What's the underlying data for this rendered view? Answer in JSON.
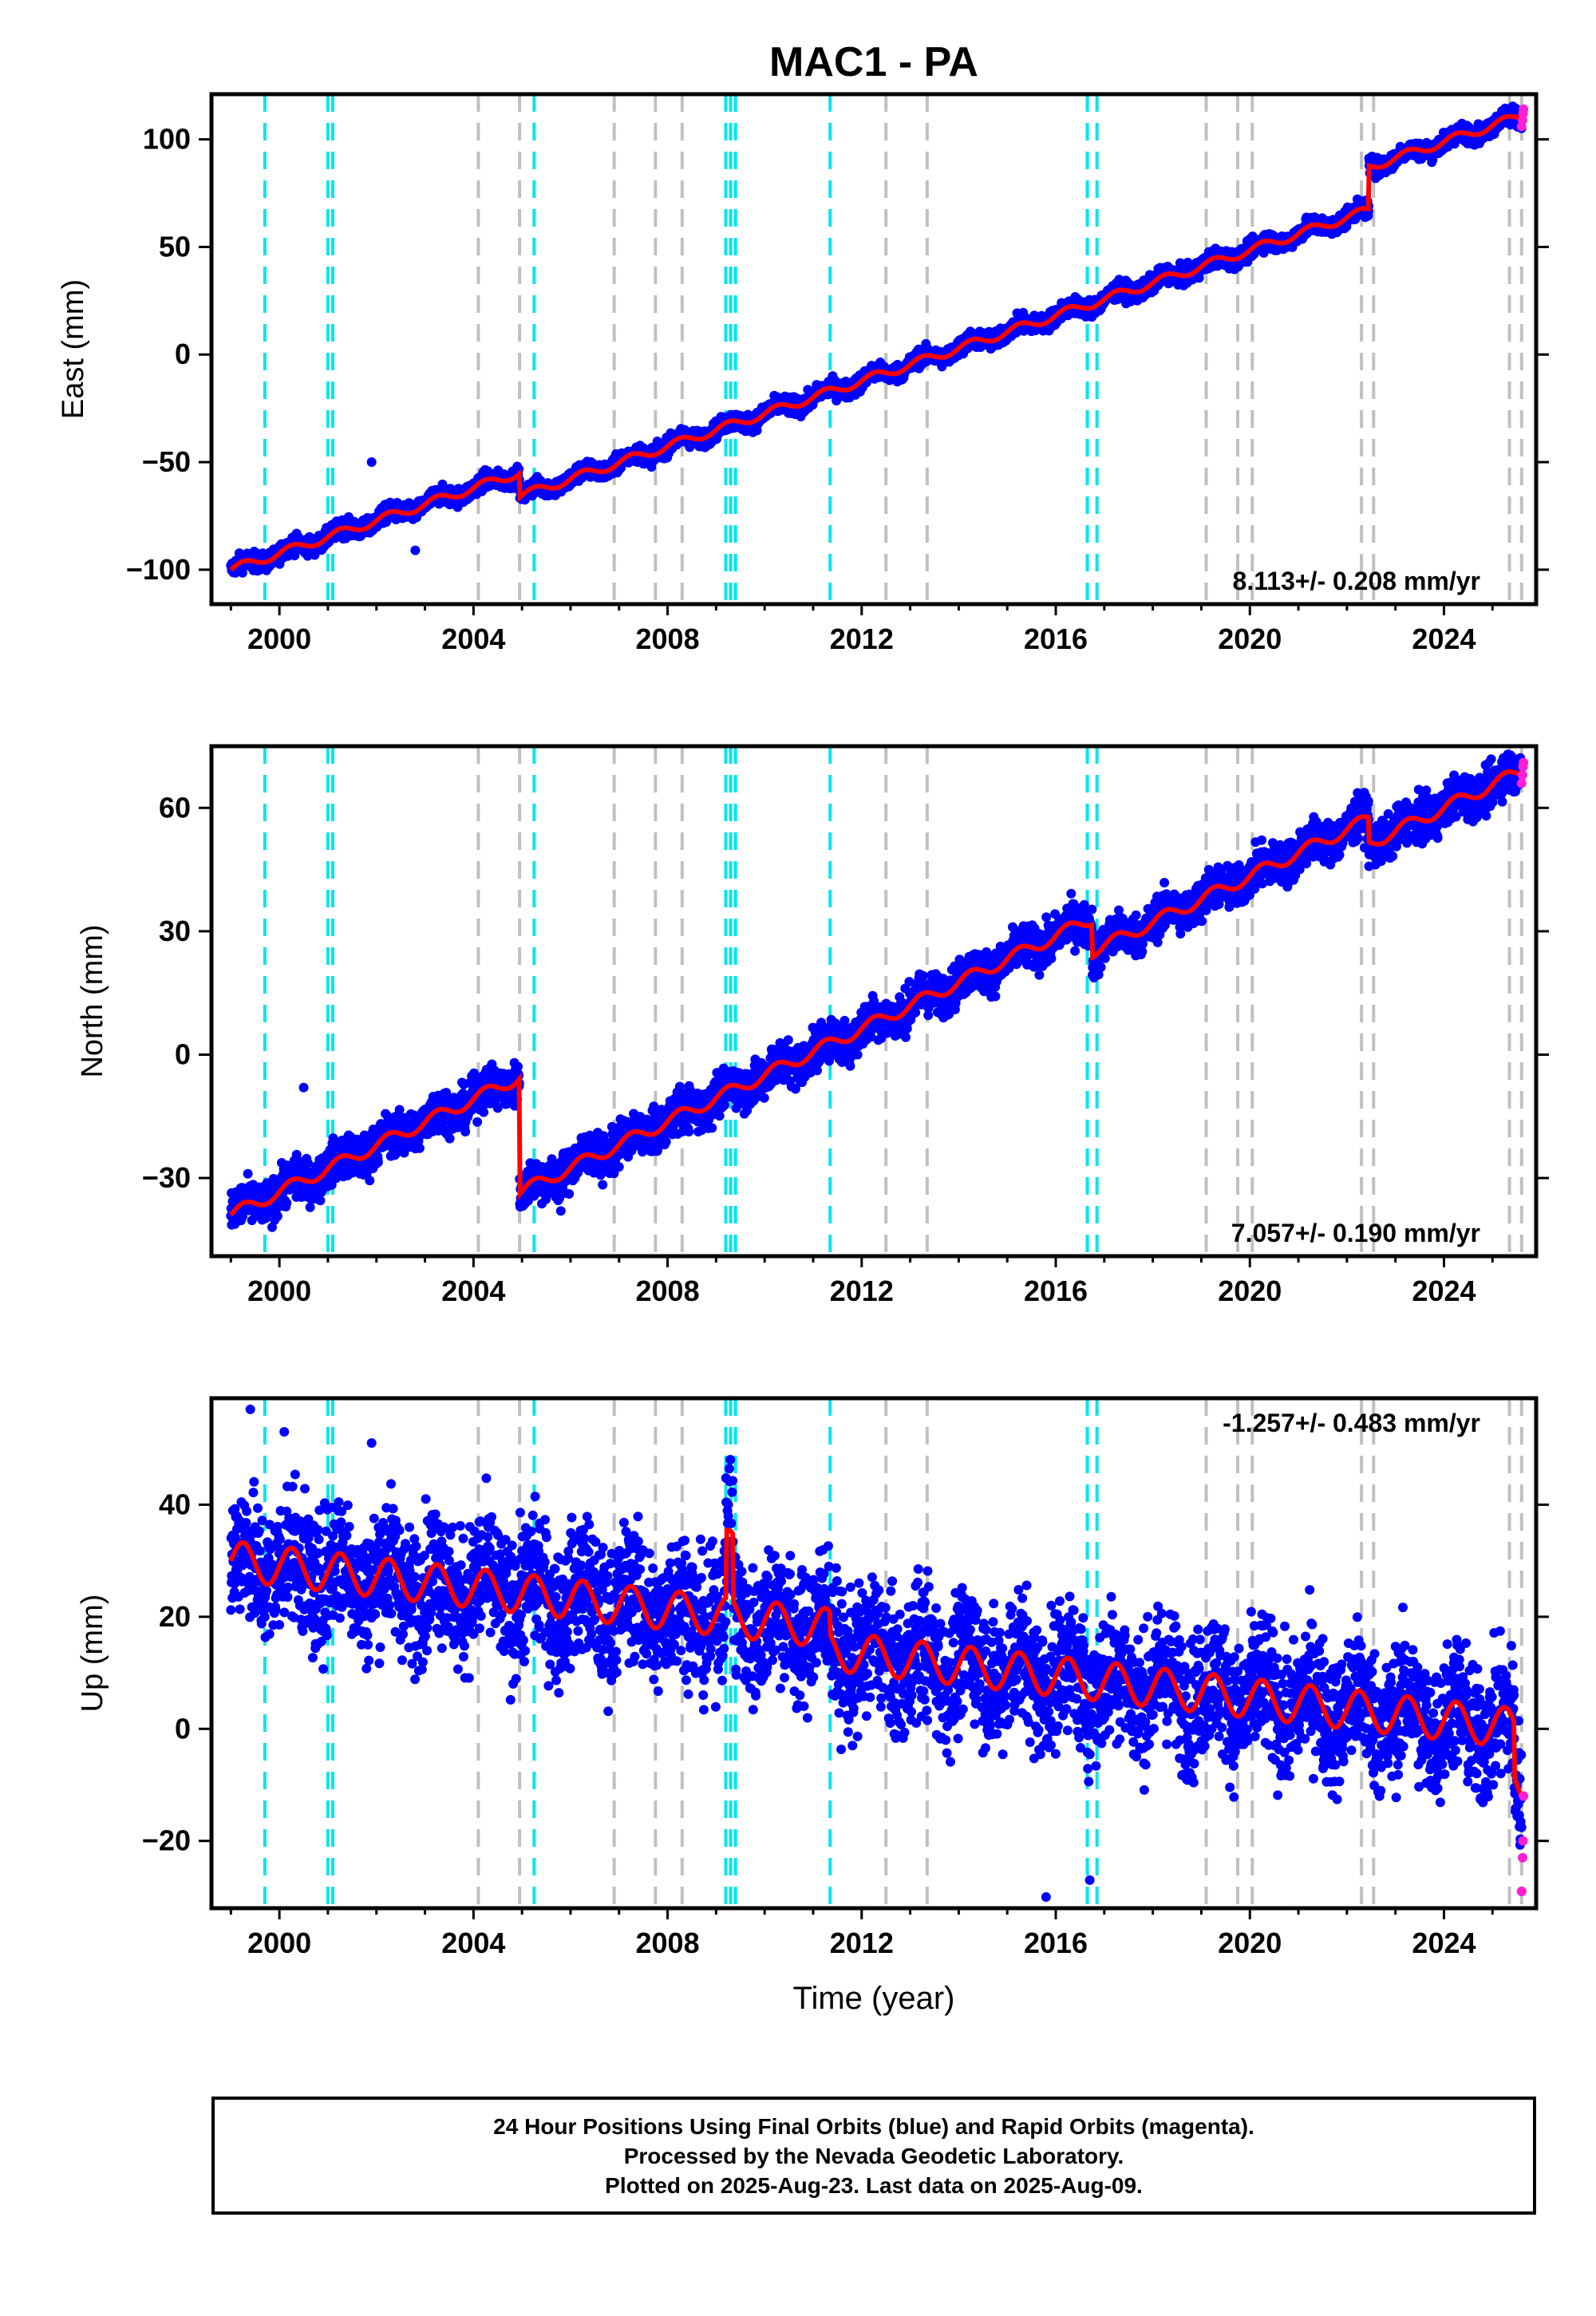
{
  "title": "MAC1 - PA",
  "xlabel": "Time (year)",
  "footer": {
    "line1": "24 Hour Positions Using Final Orbits (blue) and Rapid Orbits (magenta).",
    "line2": "Processed by the Nevada Geodetic Laboratory.",
    "line3": "Plotted on 2025-Aug-23. Last data on 2025-Aug-09."
  },
  "colors": {
    "final": "#0000ff",
    "rapid": "#ff1fd2",
    "model": "#ff0000",
    "equipment_change": "#00e5ee",
    "earthquake": "#c0c0c0"
  },
  "chart_data": [
    {
      "type": "scatter",
      "panel": "East",
      "ylabel": "East (mm)",
      "xlim": [
        1998.6,
        2025.9
      ],
      "ylim": [
        -116,
        121
      ],
      "yticks": [
        -100,
        -50,
        0,
        50,
        100
      ],
      "xticks": [
        2000,
        2004,
        2008,
        2012,
        2016,
        2020,
        2024
      ],
      "rate_label": "8.113+/- 0.208 mm/yr",
      "rate_position": "bottom-right",
      "grid": false,
      "series": [
        {
          "role": "trend",
          "start": 1999.0,
          "end": 2025.6,
          "start_value": -100,
          "end_value": 111,
          "seasonal_amplitude": 2.0,
          "scatter": 2.0
        },
        {
          "role": "steps",
          "steps": [
            [
              2004.95,
              -11
            ],
            [
              2022.45,
              20
            ]
          ]
        },
        {
          "role": "outliers",
          "points": [
            [
              2001.9,
              -50
            ],
            [
              2002.8,
              -91
            ]
          ]
        }
      ]
    },
    {
      "type": "scatter",
      "panel": "North",
      "ylabel": "North (mm)",
      "xlim": [
        1998.6,
        2025.9
      ],
      "ylim": [
        -49,
        75
      ],
      "yticks": [
        -30,
        0,
        30,
        60
      ],
      "xticks": [
        2000,
        2004,
        2008,
        2012,
        2016,
        2020,
        2024
      ],
      "rate_label": "7.057+/- 0.190 mm/yr",
      "rate_position": "bottom-right",
      "grid": false,
      "series": [
        {
          "role": "trend",
          "start": 1999.0,
          "end": 2025.6,
          "start_value": -39,
          "end_value": 69,
          "seasonal_amplitude": 1.5,
          "scatter": 2.5
        },
        {
          "role": "steps",
          "steps": [
            [
              2004.95,
              -28
            ],
            [
              2016.75,
              -8
            ],
            [
              2022.45,
              -6
            ]
          ]
        },
        {
          "role": "outliers",
          "points": [
            [
              2000.5,
              -8
            ],
            [
              2001.8,
              -29
            ],
            [
              2005.8,
              -38
            ]
          ]
        }
      ]
    },
    {
      "type": "scatter",
      "panel": "Up",
      "ylabel": "Up (mm)",
      "xlim": [
        1998.6,
        2025.9
      ],
      "ylim": [
        -32,
        59
      ],
      "yticks": [
        -20,
        0,
        20,
        40
      ],
      "xticks": [
        2000,
        2004,
        2008,
        2012,
        2016,
        2020,
        2024
      ],
      "rate_label": "-1.257+/- 0.483 mm/yr",
      "rate_position": "top-right",
      "grid": false,
      "series": [
        {
          "role": "trend",
          "start": 1999.0,
          "end": 2025.6,
          "start_value": 30,
          "end_value": -10,
          "seasonal_amplitude": 3.5,
          "scatter": 6.0
        },
        {
          "role": "steps",
          "steps": [
            [
              2009.2,
              12
            ],
            [
              2009.35,
              -12
            ],
            [
              2011.35,
              -4
            ],
            [
              2025.45,
              -10
            ]
          ]
        },
        {
          "role": "outliers",
          "points": [
            [
              1999.4,
              57
            ],
            [
              2000.1,
              53
            ],
            [
              2001.9,
              51
            ],
            [
              2009.25,
              40
            ],
            [
              2015.8,
              -30
            ],
            [
              2016.7,
              -27
            ],
            [
              2025.6,
              -29
            ]
          ]
        }
      ]
    }
  ],
  "event_lines": {
    "equipment_change": [
      1999.7,
      2001.0,
      2001.1,
      2005.25,
      2009.2,
      2009.3,
      2009.4,
      2011.35,
      2016.65,
      2016.85
    ],
    "earthquake": [
      2004.1,
      2004.95,
      2006.9,
      2007.75,
      2008.3,
      2012.5,
      2013.35,
      2019.1,
      2019.75,
      2020.05,
      2022.3,
      2022.55,
      2025.35,
      2025.6
    ]
  },
  "rapid_points": {
    "East": [
      [
        2025.6,
        106
      ],
      [
        2025.62,
        109
      ],
      [
        2025.63,
        112
      ],
      [
        2025.64,
        114
      ]
    ],
    "North": [
      [
        2025.6,
        66
      ],
      [
        2025.62,
        68
      ],
      [
        2025.63,
        70
      ],
      [
        2025.64,
        71
      ]
    ],
    "Up": [
      [
        2025.6,
        -29
      ],
      [
        2025.62,
        -23
      ],
      [
        2025.63,
        -20
      ],
      [
        2025.64,
        -12
      ]
    ]
  }
}
